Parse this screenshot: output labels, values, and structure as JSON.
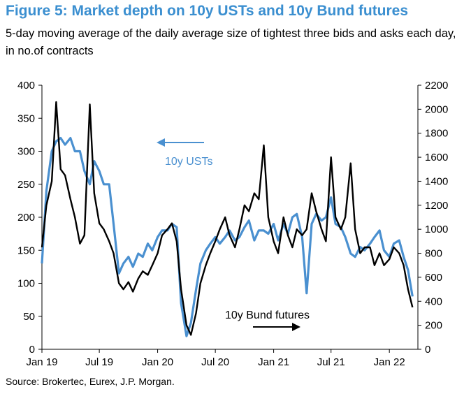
{
  "header": {
    "title": "Figure 5: Market depth on 10y USTs and 10y Bund futures",
    "subtitle": "5-day moving average of the daily average size of tightest three bids and asks each day, in no.of contracts"
  },
  "footer": {
    "source": "Source: Brokertec, Eurex, J.P. Morgan."
  },
  "colors": {
    "ust": "#4a90d0",
    "bund": "#000000",
    "title": "#3b8fd0"
  },
  "chart_data": {
    "type": "line",
    "title": "Figure 5: Market depth on 10y USTs and 10y Bund futures",
    "xlabel": "",
    "ylabel": "",
    "x_ticks": [
      "Jan 19",
      "Jul 19",
      "Jan 20",
      "Jul 20",
      "Jan 21",
      "Jul 21",
      "Jan 22"
    ],
    "x_range": [
      "2019-01",
      "2022-04"
    ],
    "y_left": {
      "ticks": [
        0,
        50,
        100,
        150,
        200,
        250,
        300,
        350,
        400
      ],
      "ylim": [
        0,
        400
      ]
    },
    "y_right": {
      "ticks": [
        0,
        200,
        400,
        600,
        800,
        1000,
        1200,
        1400,
        1600,
        1800,
        2000,
        2200
      ],
      "ylim": [
        0,
        2200
      ]
    },
    "annotations": [
      {
        "text": "10y USTs",
        "arrow": "left",
        "color": "#4a90d0"
      },
      {
        "text": "10y Bund futures",
        "arrow": "right",
        "color": "#000000"
      }
    ],
    "grid": false,
    "series": [
      {
        "name": "10y USTs",
        "axis": "left",
        "color": "#4a90d0",
        "x": [
          "2019-01-01",
          "2019-01-15",
          "2019-02-01",
          "2019-02-15",
          "2019-03-01",
          "2019-03-15",
          "2019-04-01",
          "2019-04-15",
          "2019-05-01",
          "2019-05-15",
          "2019-06-01",
          "2019-06-15",
          "2019-07-01",
          "2019-07-15",
          "2019-08-01",
          "2019-08-15",
          "2019-09-01",
          "2019-09-15",
          "2019-10-01",
          "2019-10-15",
          "2019-11-01",
          "2019-11-15",
          "2019-12-01",
          "2019-12-15",
          "2020-01-01",
          "2020-01-15",
          "2020-02-01",
          "2020-02-15",
          "2020-03-01",
          "2020-03-15",
          "2020-04-01",
          "2020-04-15",
          "2020-05-01",
          "2020-05-15",
          "2020-06-01",
          "2020-06-15",
          "2020-07-01",
          "2020-07-15",
          "2020-08-01",
          "2020-08-15",
          "2020-09-01",
          "2020-09-15",
          "2020-10-01",
          "2020-10-15",
          "2020-11-01",
          "2020-11-15",
          "2020-12-01",
          "2020-12-15",
          "2021-01-01",
          "2021-01-15",
          "2021-02-01",
          "2021-02-15",
          "2021-03-01",
          "2021-03-15",
          "2021-04-01",
          "2021-04-15",
          "2021-05-01",
          "2021-05-15",
          "2021-06-01",
          "2021-06-15",
          "2021-07-01",
          "2021-07-15",
          "2021-08-01",
          "2021-08-15",
          "2021-09-01",
          "2021-09-15",
          "2021-10-01",
          "2021-10-15",
          "2021-11-01",
          "2021-11-15",
          "2021-12-01",
          "2021-12-15",
          "2022-01-01",
          "2022-01-15",
          "2022-02-01",
          "2022-02-15",
          "2022-03-01",
          "2022-03-15"
        ],
        "values": [
          130,
          240,
          300,
          315,
          320,
          310,
          320,
          300,
          300,
          270,
          250,
          285,
          270,
          250,
          250,
          190,
          115,
          130,
          140,
          125,
          145,
          140,
          160,
          150,
          170,
          180,
          180,
          190,
          185,
          70,
          20,
          40,
          90,
          130,
          150,
          160,
          170,
          160,
          170,
          180,
          165,
          170,
          185,
          195,
          165,
          180,
          180,
          175,
          190,
          165,
          190,
          175,
          200,
          205,
          170,
          85,
          190,
          205,
          195,
          200,
          230,
          190,
          185,
          170,
          145,
          140,
          155,
          150,
          160,
          170,
          180,
          150,
          140,
          160,
          165,
          140,
          120,
          80
        ]
      },
      {
        "name": "10y Bund futures",
        "axis": "right",
        "color": "#000000",
        "x": [
          "2019-01-01",
          "2019-01-15",
          "2019-02-01",
          "2019-02-15",
          "2019-03-01",
          "2019-03-15",
          "2019-04-01",
          "2019-04-15",
          "2019-05-01",
          "2019-05-15",
          "2019-06-01",
          "2019-06-15",
          "2019-07-01",
          "2019-07-15",
          "2019-08-01",
          "2019-08-15",
          "2019-09-01",
          "2019-09-15",
          "2019-10-01",
          "2019-10-15",
          "2019-11-01",
          "2019-11-15",
          "2019-12-01",
          "2019-12-15",
          "2020-01-01",
          "2020-01-15",
          "2020-02-01",
          "2020-02-15",
          "2020-03-01",
          "2020-03-15",
          "2020-04-01",
          "2020-04-15",
          "2020-05-01",
          "2020-05-15",
          "2020-06-01",
          "2020-06-15",
          "2020-07-01",
          "2020-07-15",
          "2020-08-01",
          "2020-08-15",
          "2020-09-01",
          "2020-09-15",
          "2020-10-01",
          "2020-10-15",
          "2020-11-01",
          "2020-11-15",
          "2020-12-01",
          "2020-12-15",
          "2021-01-01",
          "2021-01-15",
          "2021-02-01",
          "2021-02-15",
          "2021-03-01",
          "2021-03-15",
          "2021-04-01",
          "2021-04-15",
          "2021-05-01",
          "2021-05-15",
          "2021-06-01",
          "2021-06-15",
          "2021-07-01",
          "2021-07-15",
          "2021-08-01",
          "2021-08-15",
          "2021-09-01",
          "2021-09-15",
          "2021-10-01",
          "2021-10-15",
          "2021-11-01",
          "2021-11-15",
          "2021-12-01",
          "2021-12-15",
          "2022-01-01",
          "2022-01-15",
          "2022-02-01",
          "2022-02-15",
          "2022-03-01",
          "2022-03-15"
        ],
        "values": [
          850,
          1200,
          1400,
          2060,
          1500,
          1450,
          1250,
          1100,
          880,
          950,
          2040,
          1300,
          1050,
          1000,
          900,
          800,
          550,
          500,
          560,
          480,
          590,
          650,
          620,
          700,
          800,
          950,
          1000,
          1050,
          900,
          500,
          200,
          120,
          300,
          550,
          700,
          800,
          900,
          1000,
          1100,
          950,
          850,
          1000,
          1200,
          1150,
          1300,
          1250,
          1700,
          1100,
          900,
          800,
          1100,
          950,
          850,
          1000,
          950,
          1000,
          1300,
          1150,
          1000,
          900,
          1600,
          1100,
          1000,
          1100,
          1550,
          1000,
          800,
          850,
          850,
          700,
          800,
          700,
          750,
          850,
          800,
          700,
          500,
          350
        ]
      }
    ]
  }
}
